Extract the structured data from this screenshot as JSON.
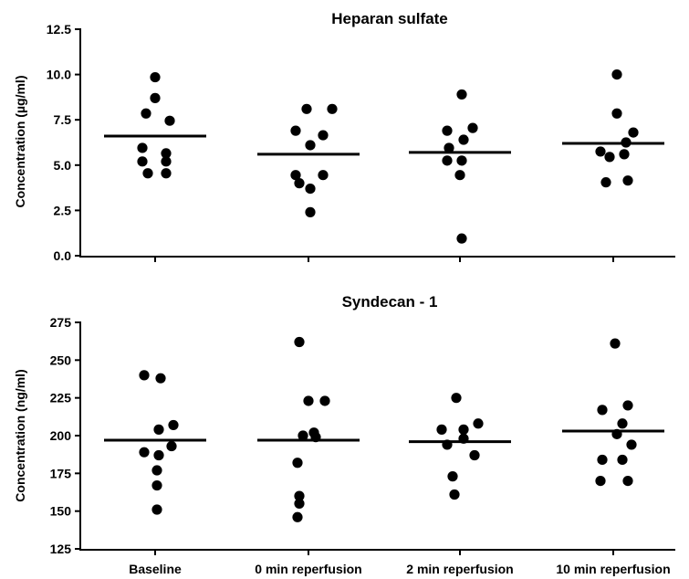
{
  "chart_data": [
    {
      "type": "scatter",
      "title": "Heparan sulfate",
      "ylabel": "Concentration (µg/ml)",
      "xlabel": "",
      "categories": [
        "Baseline",
        "0 min reperfusion",
        "2 min reperfusion",
        "10 min reperfusion"
      ],
      "show_category_labels": false,
      "ylim": [
        0,
        12.5
      ],
      "yticks": [
        "0.0",
        "2.5",
        "5.0",
        "7.5",
        "10.0",
        "12.5"
      ],
      "grid": false,
      "means": [
        6.6,
        5.6,
        5.7,
        6.2
      ],
      "points": [
        [
          9.85,
          8.7,
          7.45,
          7.85,
          5.95,
          5.65,
          5.2,
          5.2,
          4.55,
          4.55
        ],
        [
          8.1,
          8.1,
          6.9,
          6.65,
          6.1,
          4.45,
          4.45,
          4.0,
          3.7,
          2.4
        ],
        [
          8.9,
          6.9,
          7.05,
          6.4,
          5.95,
          5.25,
          5.25,
          4.45,
          0.95
        ],
        [
          10.0,
          7.85,
          6.8,
          6.25,
          5.75,
          5.6,
          5.45,
          4.05,
          4.15
        ]
      ]
    },
    {
      "type": "scatter",
      "title": "Syndecan - 1",
      "ylabel": "Concentration (ng/ml)",
      "xlabel": "",
      "categories": [
        "Baseline",
        "0 min reperfusion",
        "2 min reperfusion",
        "10 min reperfusion"
      ],
      "show_category_labels": true,
      "ylim": [
        125,
        275
      ],
      "yticks": [
        "125",
        "150",
        "175",
        "200",
        "225",
        "250",
        "275"
      ],
      "grid": false,
      "means": [
        197,
        197,
        196,
        203
      ],
      "points": [
        [
          240,
          238,
          207,
          204,
          193,
          189,
          187,
          177,
          167,
          151
        ],
        [
          262,
          223,
          223,
          202,
          200,
          199,
          182,
          160,
          155,
          146
        ],
        [
          225,
          208,
          204,
          204,
          198,
          194,
          187,
          173,
          161
        ],
        [
          261,
          220,
          217,
          208,
          201,
          194,
          184,
          184,
          170,
          170
        ]
      ]
    }
  ]
}
